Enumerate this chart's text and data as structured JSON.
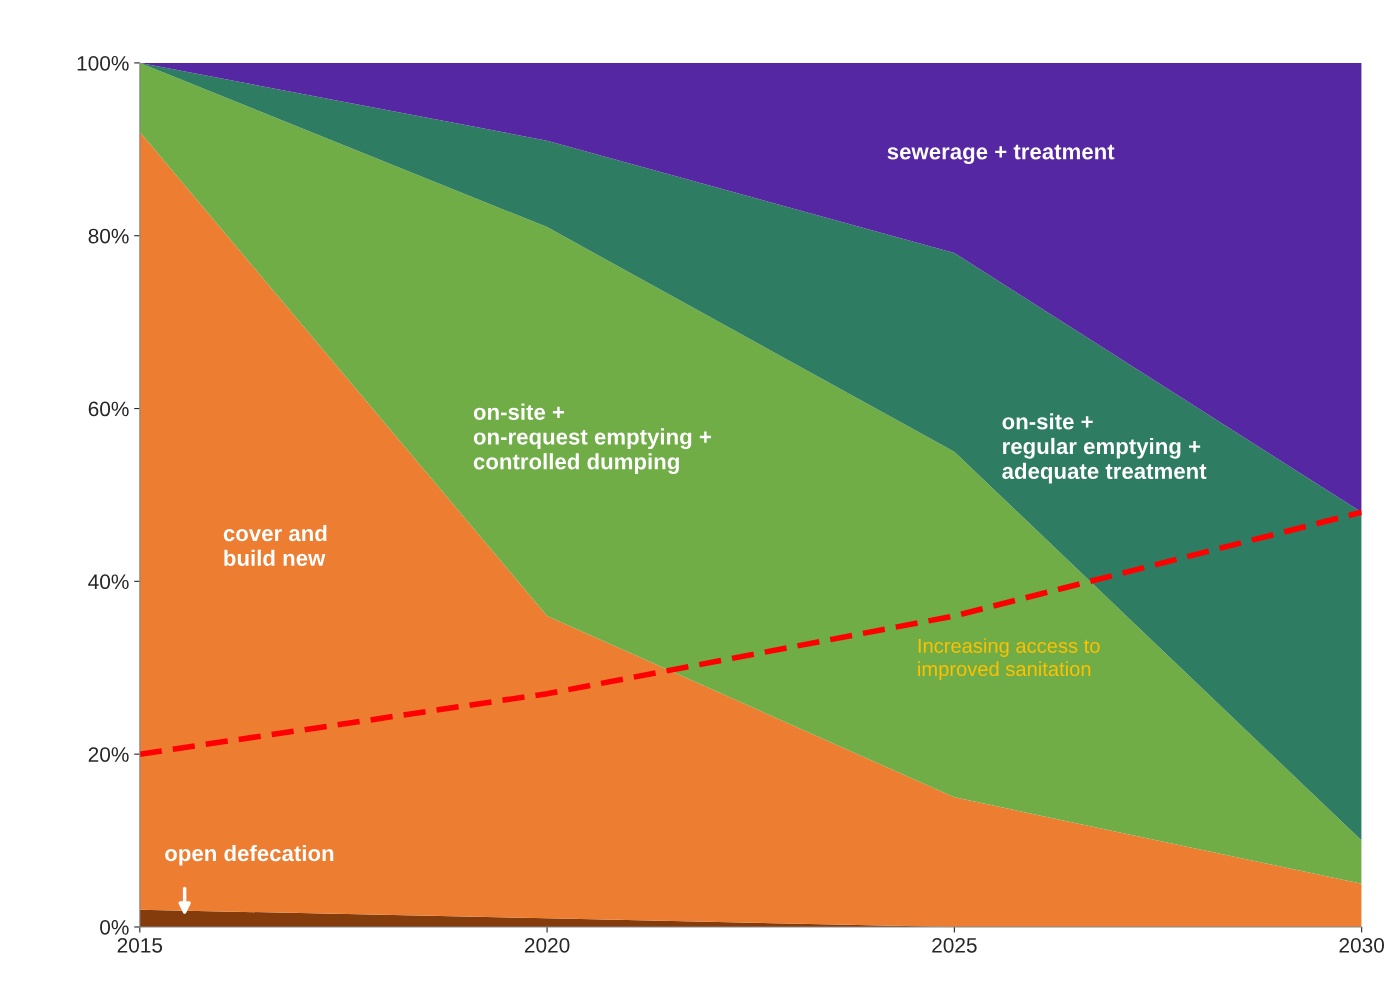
{
  "chart_data": {
    "type": "area",
    "stacked": true,
    "x": [
      2015,
      2020,
      2025,
      2030
    ],
    "series": [
      {
        "name": "open defecation",
        "color": "#843c0c",
        "values": [
          2,
          1,
          0,
          0
        ]
      },
      {
        "name": "cover and\nbuild new",
        "color": "#ed7d31",
        "values": [
          90,
          35,
          15,
          5
        ]
      },
      {
        "name": "on-site +\non-request emptying +\ncontrolled dumping",
        "color": "#70ad47",
        "values": [
          8,
          45,
          40,
          5
        ]
      },
      {
        "name": "on-site +\nregular emptying +\nadequate treatment",
        "color": "#2e7d62",
        "values": [
          0,
          10,
          23,
          38
        ]
      },
      {
        "name": "sewerage + treatment",
        "color": "#5627a3",
        "values": [
          0,
          9,
          22,
          52
        ]
      },
      {
        "type": "line",
        "color": "#ff0000",
        "line_style": "dashed",
        "values": [
          20,
          27,
          36,
          48
        ]
      }
    ],
    "annotations": [
      {
        "text": "Increasing access to\nimproved sanitation",
        "x": 2025,
        "y": 36
      }
    ],
    "xlim": [
      2015,
      2030
    ],
    "xticks": [
      2015,
      2020,
      2025,
      2030
    ],
    "ylim": [
      0,
      100
    ],
    "yticks": [
      {
        "value": 0,
        "label": "0%"
      },
      {
        "value": 20,
        "label": "20%"
      },
      {
        "value": 40,
        "label": "40%"
      },
      {
        "value": 60,
        "label": "60%"
      },
      {
        "value": 80,
        "label": "80%"
      },
      {
        "value": 100,
        "label": "100%"
      }
    ],
    "grid": false,
    "legend": false
  }
}
